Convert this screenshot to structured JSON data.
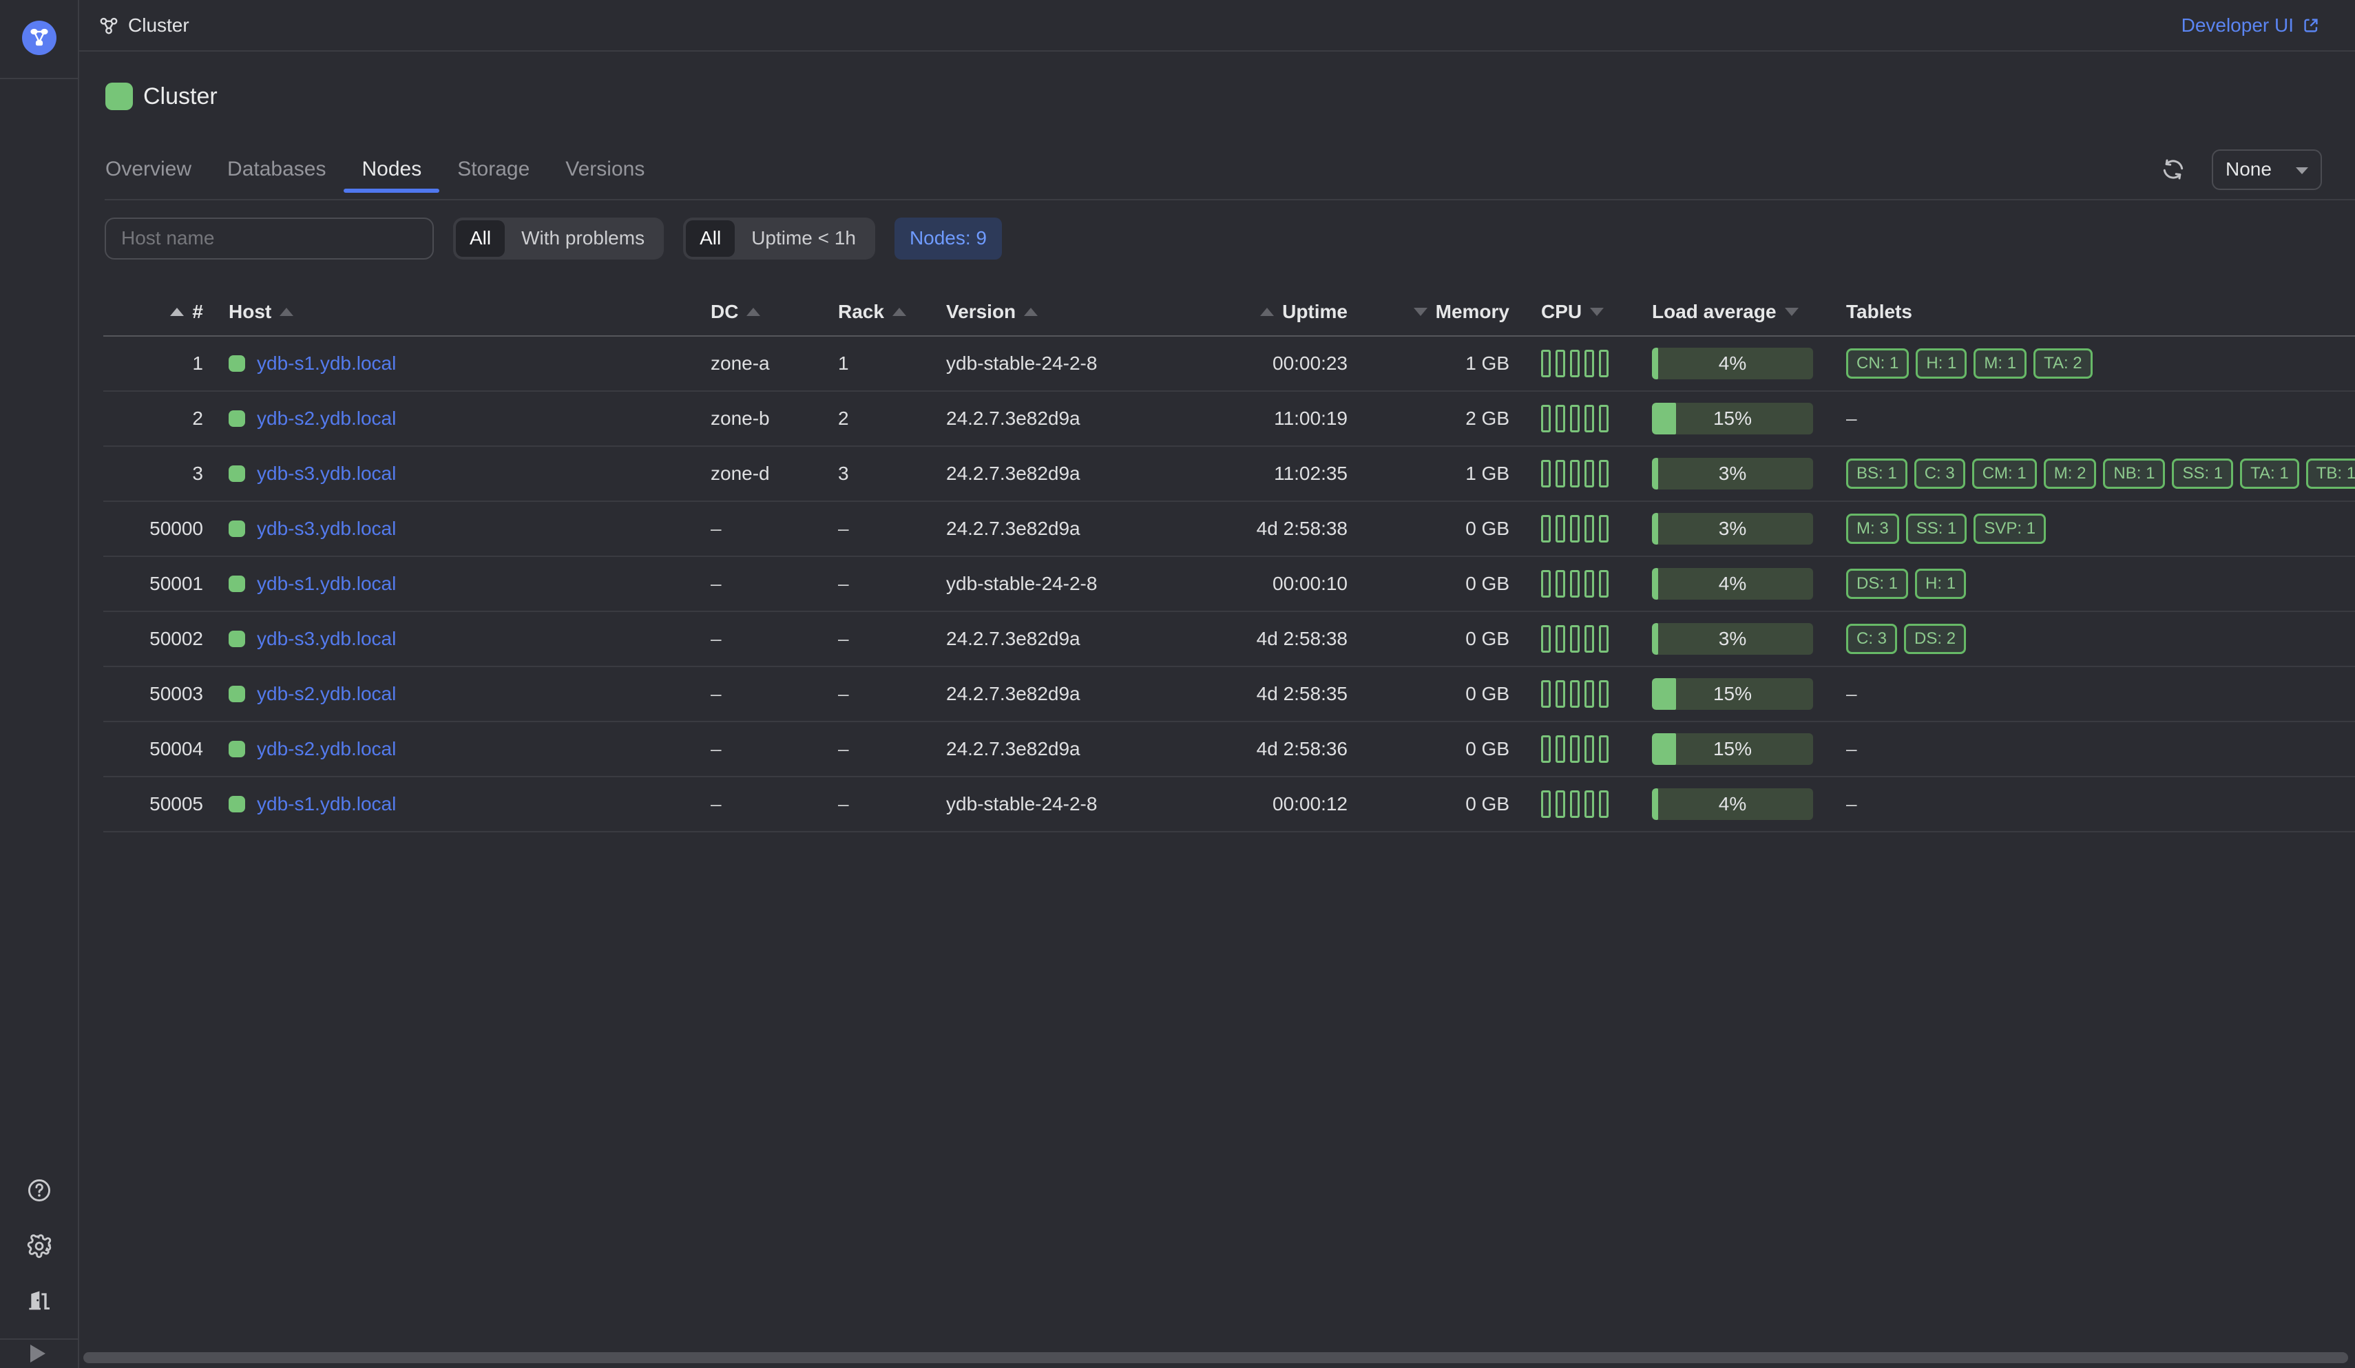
{
  "topbar": {
    "breadcrumb": "Cluster",
    "developer_ui_label": "Developer UI"
  },
  "page": {
    "title": "Cluster"
  },
  "tabs": [
    {
      "label": "Overview",
      "active": false
    },
    {
      "label": "Databases",
      "active": false
    },
    {
      "label": "Nodes",
      "active": true
    },
    {
      "label": "Storage",
      "active": false
    },
    {
      "label": "Versions",
      "active": false
    }
  ],
  "toolbar": {
    "autorefresh_value": "None"
  },
  "filters": {
    "host_input_placeholder": "Host name",
    "problems_segmented": {
      "options": [
        "All",
        "With problems"
      ],
      "selected": "All"
    },
    "uptime_segmented": {
      "options": [
        "All",
        "Uptime < 1h"
      ],
      "selected": "All"
    },
    "nodes_count_chip": "Nodes: 9"
  },
  "table": {
    "columns": [
      {
        "label": "#",
        "align": "right",
        "sort": "asc",
        "sort_active": true,
        "arrow_position": "before",
        "pad_class": ""
      },
      {
        "label": "Host",
        "align": "left",
        "sort": "asc",
        "sort_active": false,
        "arrow_position": "after",
        "pad_class": "c-host"
      },
      {
        "label": "DC",
        "align": "left",
        "sort": "asc",
        "sort_active": false,
        "arrow_position": "after",
        "pad_class": ""
      },
      {
        "label": "Rack",
        "align": "left",
        "sort": "asc",
        "sort_active": false,
        "arrow_position": "after",
        "pad_class": ""
      },
      {
        "label": "Version",
        "align": "left",
        "sort": "asc",
        "sort_active": false,
        "arrow_position": "after",
        "pad_class": ""
      },
      {
        "label": "Uptime",
        "align": "right",
        "sort": "asc",
        "sort_active": false,
        "arrow_position": "before",
        "pad_class": ""
      },
      {
        "label": "Memory",
        "align": "right",
        "sort": "desc",
        "sort_active": false,
        "arrow_position": "before",
        "pad_class": ""
      },
      {
        "label": "CPU",
        "align": "left",
        "sort": "desc",
        "sort_active": false,
        "arrow_position": "after",
        "pad_class": "c-cpu"
      },
      {
        "label": "Load average",
        "align": "left",
        "sort": "desc",
        "sort_active": false,
        "arrow_position": "after",
        "pad_class": ""
      },
      {
        "label": "Tablets",
        "align": "left",
        "sort": null,
        "sort_active": false,
        "arrow_position": "after",
        "pad_class": "c-tablets"
      }
    ],
    "empty_value": "–",
    "nodes": [
      {
        "id": "1",
        "host": "ydb-s1.ydb.local",
        "dc": "zone-a",
        "rack": "1",
        "version": "ydb-stable-24-2-8",
        "uptime": "00:00:23",
        "memory": "1 GB",
        "cpu_cores": 5,
        "load_percent": 4,
        "tablets": [
          "CN: 1",
          "H: 1",
          "M: 1",
          "TA: 2"
        ]
      },
      {
        "id": "2",
        "host": "ydb-s2.ydb.local",
        "dc": "zone-b",
        "rack": "2",
        "version": "24.2.7.3e82d9a",
        "uptime": "11:00:19",
        "memory": "2 GB",
        "cpu_cores": 5,
        "load_percent": 15,
        "tablets": null
      },
      {
        "id": "3",
        "host": "ydb-s3.ydb.local",
        "dc": "zone-d",
        "rack": "3",
        "version": "24.2.7.3e82d9a",
        "uptime": "11:02:35",
        "memory": "1 GB",
        "cpu_cores": 5,
        "load_percent": 3,
        "tablets": [
          "BS: 1",
          "C: 3",
          "CM: 1",
          "M: 2",
          "NB: 1",
          "SS: 1",
          "TA: 1",
          "TB: 1"
        ]
      },
      {
        "id": "50000",
        "host": "ydb-s3.ydb.local",
        "dc": "–",
        "rack": "–",
        "version": "24.2.7.3e82d9a",
        "uptime": "4d 2:58:38",
        "memory": "0 GB",
        "cpu_cores": 5,
        "load_percent": 3,
        "tablets": [
          "M: 3",
          "SS: 1",
          "SVP: 1"
        ]
      },
      {
        "id": "50001",
        "host": "ydb-s1.ydb.local",
        "dc": "–",
        "rack": "–",
        "version": "ydb-stable-24-2-8",
        "uptime": "00:00:10",
        "memory": "0 GB",
        "cpu_cores": 5,
        "load_percent": 4,
        "tablets": [
          "DS: 1",
          "H: 1"
        ]
      },
      {
        "id": "50002",
        "host": "ydb-s3.ydb.local",
        "dc": "–",
        "rack": "–",
        "version": "24.2.7.3e82d9a",
        "uptime": "4d 2:58:38",
        "memory": "0 GB",
        "cpu_cores": 5,
        "load_percent": 3,
        "tablets": [
          "C: 3",
          "DS: 2"
        ]
      },
      {
        "id": "50003",
        "host": "ydb-s2.ydb.local",
        "dc": "–",
        "rack": "–",
        "version": "24.2.7.3e82d9a",
        "uptime": "4d 2:58:35",
        "memory": "0 GB",
        "cpu_cores": 5,
        "load_percent": 15,
        "tablets": null
      },
      {
        "id": "50004",
        "host": "ydb-s2.ydb.local",
        "dc": "–",
        "rack": "–",
        "version": "24.2.7.3e82d9a",
        "uptime": "4d 2:58:36",
        "memory": "0 GB",
        "cpu_cores": 5,
        "load_percent": 15,
        "tablets": null
      },
      {
        "id": "50005",
        "host": "ydb-s1.ydb.local",
        "dc": "–",
        "rack": "–",
        "version": "ydb-stable-24-2-8",
        "uptime": "00:00:12",
        "memory": "0 GB",
        "cpu_cores": 5,
        "load_percent": 4,
        "tablets": null
      }
    ]
  },
  "icons": {
    "sidebar": [
      "ydb-logo-icon",
      "help-icon",
      "settings-icon",
      "logout-icon",
      "expand-icon"
    ],
    "topbar": [
      "cluster-icon",
      "external-link-icon"
    ],
    "toolbar": [
      "refresh-icon",
      "chevron-down-icon"
    ]
  },
  "colors": {
    "background": "#2b2c32",
    "accent_blue": "#5b85f2",
    "tab_underline": "#5078f0",
    "status_green": "#77c578",
    "load_fill_green": "#7ac47a",
    "load_track": "#3d4a3b",
    "chip_bg": "#2d3a59",
    "chip_text": "#6f9bff",
    "host_link": "#547bee"
  }
}
